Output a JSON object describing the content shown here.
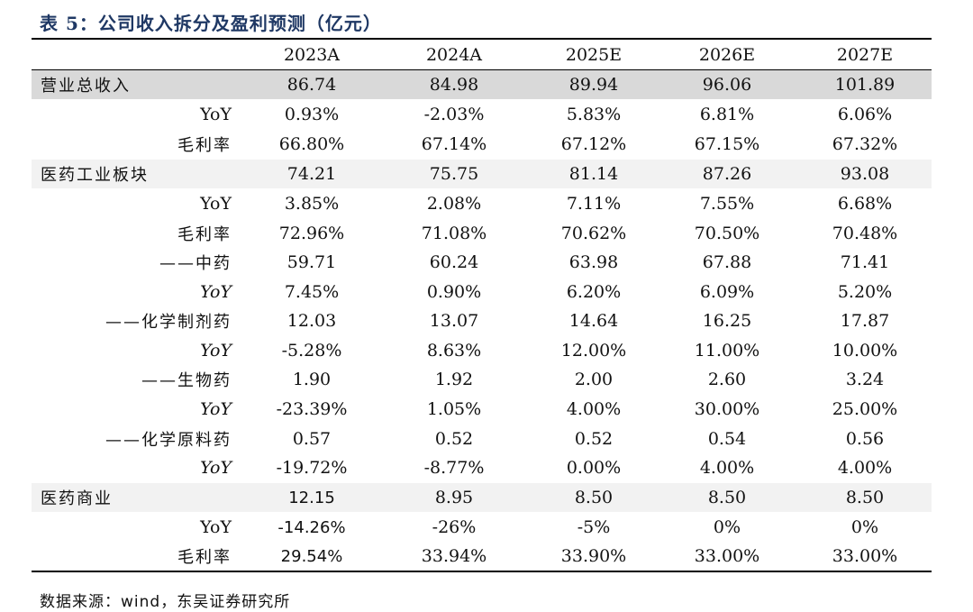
{
  "title": "表 5：公司收入拆分及盈利预测（亿元）",
  "columns": [
    "2023A",
    "2024A",
    "2025E",
    "2026E",
    "2027E"
  ],
  "rows": [
    {
      "label": "营业总收入",
      "values": [
        "86.74",
        "84.98",
        "89.94",
        "96.06",
        "101.89"
      ]
    },
    {
      "label": "YoY",
      "values": [
        "0.93%",
        "-2.03%",
        "5.83%",
        "6.81%",
        "6.06%"
      ]
    },
    {
      "label": "毛利率",
      "values": [
        "66.80%",
        "67.14%",
        "67.12%",
        "67.15%",
        "67.32%"
      ]
    },
    {
      "label": "医药工业板块",
      "values": [
        "74.21",
        "75.75",
        "81.14",
        "87.26",
        "93.08"
      ]
    },
    {
      "label": "YoY",
      "values": [
        "3.85%",
        "2.08%",
        "7.11%",
        "7.55%",
        "6.68%"
      ]
    },
    {
      "label": "毛利率",
      "values": [
        "72.96%",
        "71.08%",
        "70.62%",
        "70.50%",
        "70.48%"
      ]
    },
    {
      "label": "——中药",
      "values": [
        "59.71",
        "60.24",
        "63.98",
        "67.88",
        "71.41"
      ]
    },
    {
      "label": "YoY",
      "values": [
        "7.45%",
        "0.90%",
        "6.20%",
        "6.09%",
        "5.20%"
      ]
    },
    {
      "label": "——化学制剂药",
      "values": [
        "12.03",
        "13.07",
        "14.64",
        "16.25",
        "17.87"
      ]
    },
    {
      "label": "YoY",
      "values": [
        "-5.28%",
        "8.63%",
        "12.00%",
        "11.00%",
        "10.00%"
      ]
    },
    {
      "label": "——生物药",
      "values": [
        "1.90",
        "1.92",
        "2.00",
        "2.60",
        "3.24"
      ]
    },
    {
      "label": "YoY",
      "values": [
        "-23.39%",
        "1.05%",
        "4.00%",
        "30.00%",
        "25.00%"
      ]
    },
    {
      "label": "——化学原料药",
      "values": [
        "0.57",
        "0.52",
        "0.52",
        "0.54",
        "0.56"
      ]
    },
    {
      "label": "YoY",
      "values": [
        "-19.72%",
        "-8.77%",
        "0.00%",
        "4.00%",
        "4.00%"
      ]
    },
    {
      "label": "医药商业",
      "values": [
        "12.15",
        "8.95",
        "8.50",
        "8.50",
        "8.50"
      ]
    },
    {
      "label": "YoY",
      "values": [
        "-14.26%",
        "-26%",
        "-5%",
        "0%",
        "0%"
      ]
    },
    {
      "label": "毛利率",
      "values": [
        "29.54%",
        "33.94%",
        "33.90%",
        "33.00%",
        "33.00%"
      ]
    }
  ],
  "source": "数据来源：wind，东吴证券研究所"
}
